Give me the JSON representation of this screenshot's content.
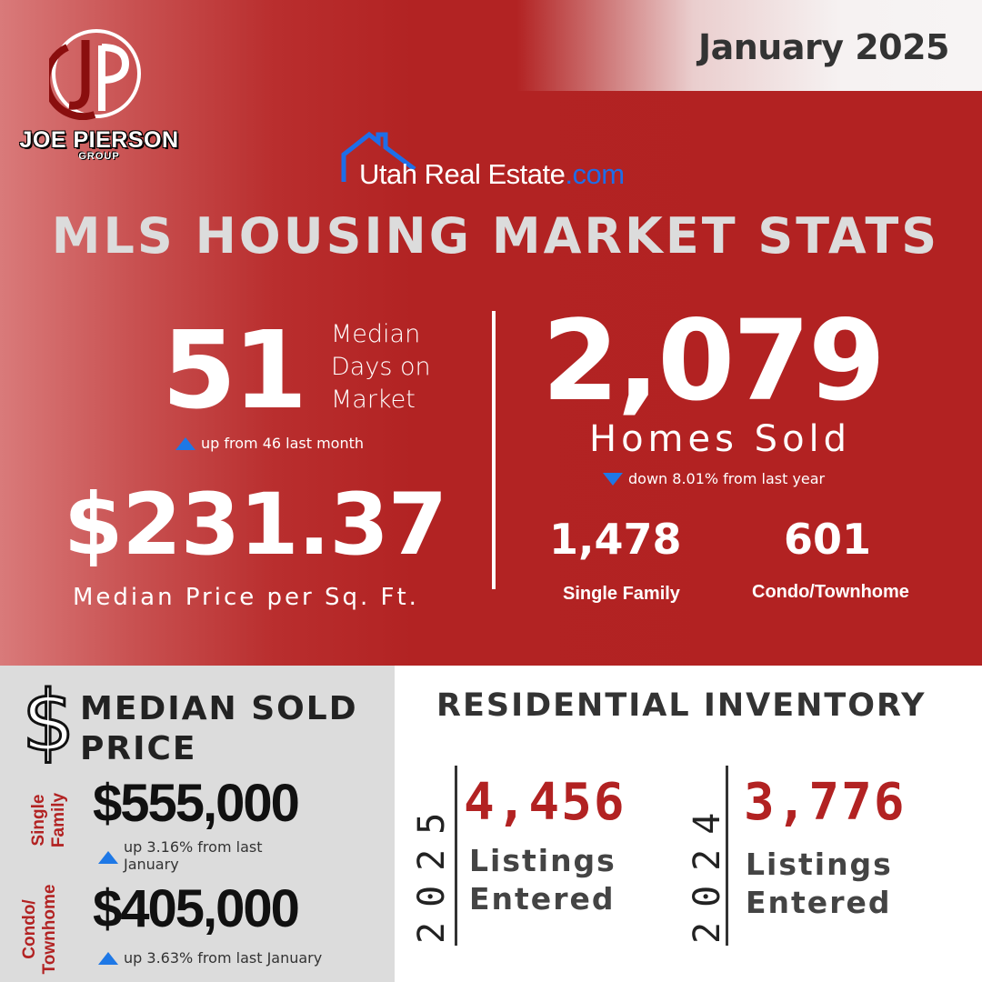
{
  "header": {
    "date": "January 2025",
    "brand_name": "JOE PIERSON",
    "brand_sub": "GROUP",
    "logo_letters": "JP",
    "source_name": "Utah Real Estate",
    "source_suffix": ".com",
    "title": "MLS HOUSING MARKET STATS"
  },
  "days_on_market": {
    "value": "51",
    "label_lines": [
      "Median",
      "Days on",
      "Market"
    ],
    "change": "up from 46 last month",
    "direction": "up"
  },
  "price_per_sqft": {
    "value": "$231.37",
    "label": "Median Price per Sq. Ft."
  },
  "homes_sold": {
    "value": "2,079",
    "label": "Homes Sold",
    "change": "down 8.01% from last year",
    "direction": "down",
    "single_family_value": "1,478",
    "single_family_label": "Single Family",
    "condo_value": "601",
    "condo_label": "Condo/Townhome"
  },
  "median_sold_price": {
    "icon": "dollar-sign-icon",
    "symbol": "$",
    "title_line1": "MEDIAN SOLD",
    "title_line2": "PRICE",
    "single_family": {
      "label_line1": "Single",
      "label_line2": "Family",
      "value": "$555,000",
      "change": "up 3.16% from last January",
      "direction": "up"
    },
    "condo": {
      "label_line1": "Condo/",
      "label_line2": "Townhome",
      "value": "$405,000",
      "change": "up 3.63% from last January",
      "direction": "up"
    }
  },
  "inventory": {
    "title": "RESIDENTIAL INVENTORY",
    "current": {
      "year": "2025",
      "value": "4,456",
      "label_line1": "Listings",
      "label_line2": "Entered"
    },
    "previous": {
      "year": "2024",
      "value": "3,776",
      "label_line1": "Listings",
      "label_line2": "Entered"
    }
  },
  "colors": {
    "brand_red": "#b22222",
    "accent_blue": "#1e78e6",
    "panel_gray": "#dcdcdc"
  }
}
